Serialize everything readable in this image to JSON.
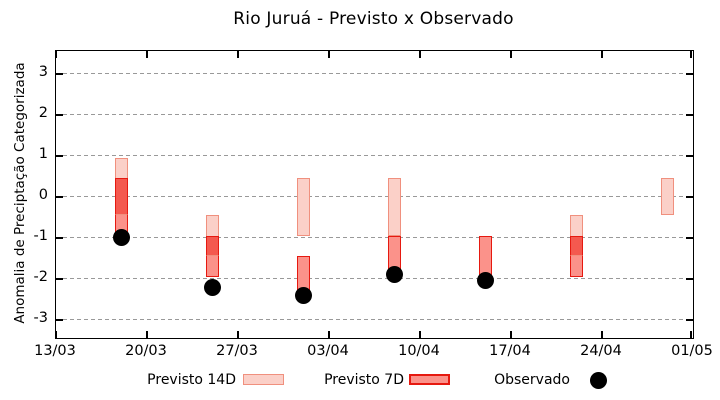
{
  "title": "Rio Juruá - Previsto x Observado",
  "axes": {
    "y_label": "Anomalia de Preciptação Categorizada",
    "y_ticks": [
      3,
      2,
      1,
      0,
      -1,
      -2,
      -3
    ],
    "x_tick_labels": [
      "13/03",
      "20/03",
      "27/03",
      "03/04",
      "10/04",
      "17/04",
      "24/04",
      "01/05"
    ],
    "x_tick_days": [
      0,
      7,
      14,
      21,
      28,
      35,
      42,
      49
    ],
    "y_range": [
      -3.44,
      3.55
    ],
    "x_span_days": 49
  },
  "legend": {
    "items": [
      {
        "label": "Previsto 14D",
        "swatch": "light-box"
      },
      {
        "label": "Previsto 7D",
        "swatch": "dark-box"
      },
      {
        "label": "Observado",
        "swatch": "black-dot"
      }
    ]
  },
  "colors": {
    "p14_fill": "#fbd0c8",
    "p14_border": "#f0907e",
    "p7_fill": "#fb928a",
    "p7_border": "#e61910",
    "overlap_fill": "#f4594f",
    "observed": "#000000",
    "grid": "#999999",
    "frame": "#000000"
  },
  "chart_data": {
    "type": "bar",
    "subtype": "range-bars-with-scatter",
    "title": "Rio Juruá - Previsto x Observado",
    "xlabel": "",
    "ylabel": "Anomalia de Preciptação Categorizada",
    "ylim": [
      -3.44,
      3.55
    ],
    "grid": "horizontal-dashed",
    "legend_position": "bottom",
    "series_names": [
      "Previsto 14D",
      "Previsto 7D",
      "Observado"
    ],
    "points": [
      {
        "date": "18/03",
        "day": 5,
        "previsto_14d": [
          -0.45,
          0.95
        ],
        "previsto_7d": [
          -0.95,
          0.45
        ],
        "observado": -1.0
      },
      {
        "date": "25/03",
        "day": 12,
        "previsto_14d": [
          -1.45,
          -0.45
        ],
        "previsto_7d": [
          -1.95,
          -0.95
        ],
        "observado": -2.2
      },
      {
        "date": "01/04",
        "day": 19,
        "previsto_14d": [
          -0.95,
          0.45
        ],
        "previsto_7d": [
          -2.45,
          -1.45
        ],
        "observado": -2.4
      },
      {
        "date": "08/04",
        "day": 26,
        "previsto_14d": [
          -0.95,
          0.45
        ],
        "previsto_7d": [
          -1.95,
          -0.95
        ],
        "observado": -1.9
      },
      {
        "date": "15/04",
        "day": 33,
        "previsto_14d": null,
        "previsto_7d": [
          -1.95,
          -0.95
        ],
        "observado": -2.05
      },
      {
        "date": "22/04",
        "day": 40,
        "previsto_14d": [
          -1.45,
          -0.45
        ],
        "previsto_7d": [
          -1.95,
          -0.95
        ],
        "observado": null
      },
      {
        "date": "29/04",
        "day": 47,
        "previsto_14d": [
          -0.45,
          0.45
        ],
        "previsto_7d": null,
        "observado": null
      }
    ]
  }
}
